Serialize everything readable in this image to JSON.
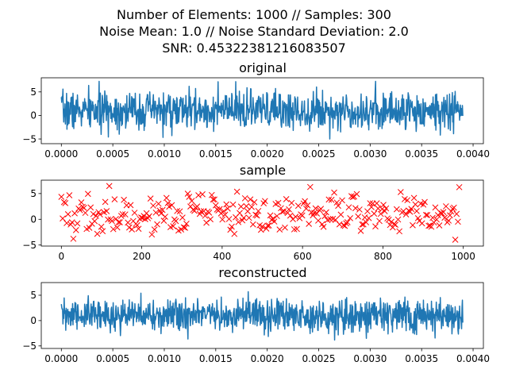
{
  "figure": {
    "title_lines": [
      "Number of Elements: 1000 // Samples: 300",
      "Noise Mean: 1.0 // Noise Standard Deviation: 2.0",
      "SNR: 0.45322381216083507"
    ]
  },
  "colors": {
    "line": "#1f77b4",
    "sample": "#ff0000"
  },
  "chart_data": [
    {
      "type": "line",
      "title": "original",
      "xlim": [
        -0.000195,
        0.0041
      ],
      "ylim": [
        -6,
        8
      ],
      "xticks": [
        0.0,
        0.0005,
        0.001,
        0.0015,
        0.002,
        0.0025,
        0.003,
        0.0035,
        0.004
      ],
      "xtick_labels": [
        "0.0000",
        "0.0005",
        "0.0010",
        "0.0015",
        "0.0020",
        "0.0025",
        "0.0030",
        "0.0035",
        "0.0040"
      ],
      "yticks": [
        -5,
        0,
        5
      ],
      "ytick_labels": [
        "−5",
        "0",
        "5"
      ],
      "series": [
        {
          "x_start": 0.0,
          "x_end": 0.0039,
          "n_points": 1000,
          "mean": 1.0,
          "spread": 2.0,
          "min": -6.0,
          "max": 7.8,
          "seed": 7
        }
      ]
    },
    {
      "type": "scatter",
      "title": "sample",
      "xlim": [
        -50,
        1050
      ],
      "ylim": [
        -5.2,
        7.6
      ],
      "xticks": [
        0,
        200,
        400,
        600,
        800,
        1000
      ],
      "xtick_labels": [
        "0",
        "200",
        "400",
        "600",
        "800",
        "1000"
      ],
      "yticks": [
        -5,
        0,
        5
      ],
      "ytick_labels": [
        "−5",
        "0",
        "5"
      ],
      "series": [
        {
          "marker": "x",
          "x_start": 0,
          "x_end": 990,
          "n_points": 300,
          "mean": 1.0,
          "spread": 2.0,
          "min": -4.8,
          "max": 7.2,
          "seed": 19
        }
      ]
    },
    {
      "type": "line",
      "title": "reconstructed",
      "xlim": [
        -0.000195,
        0.0041
      ],
      "ylim": [
        -5.5,
        7.5
      ],
      "xticks": [
        0.0,
        0.0005,
        0.001,
        0.0015,
        0.002,
        0.0025,
        0.003,
        0.0035,
        0.004
      ],
      "xtick_labels": [
        "0.0000",
        "0.0005",
        "0.0010",
        "0.0015",
        "0.0020",
        "0.0025",
        "0.0030",
        "0.0035",
        "0.0040"
      ],
      "yticks": [
        -5,
        0,
        5
      ],
      "ytick_labels": [
        "−5",
        "0",
        "5"
      ],
      "series": [
        {
          "x_start": 0.0,
          "x_end": 0.0039,
          "n_points": 1000,
          "mean": 1.0,
          "spread": 1.6,
          "min": -4.5,
          "max": 7.0,
          "seed": 31
        }
      ]
    }
  ]
}
